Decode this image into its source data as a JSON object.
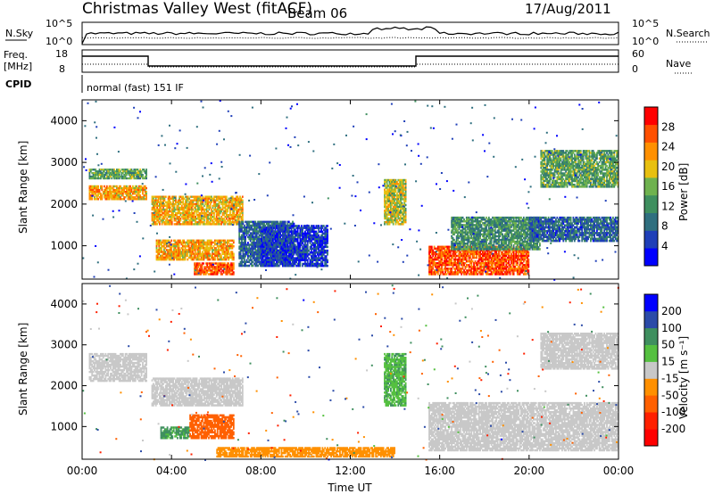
{
  "header": {
    "title": "Christmas Valley West (fitACF)",
    "beam": "Beam 06",
    "date": "17/Aug/2011"
  },
  "scan_panel": {
    "left_label": "N.Sky",
    "left_ticks": [
      "10^5",
      "10^0"
    ],
    "right_label": "N.Search",
    "right_ticks": [
      "10^5",
      "10^0"
    ]
  },
  "freq_panel": {
    "left_label_1": "Freq.",
    "left_label_2": "[MHz]",
    "left_ticks": [
      "18",
      "8"
    ],
    "right_label": "Nave",
    "right_ticks": [
      "60",
      "0"
    ],
    "cpid_label": "CPID",
    "cpid_text": "normal (fast) 151 IF"
  },
  "chart_data": [
    {
      "type": "heatmap",
      "name": "power",
      "ylabel": "Slant Range [km]",
      "y_ticks": [
        "4000",
        "3000",
        "2000",
        "1000"
      ],
      "y_values": [
        4000,
        3000,
        2000,
        1000
      ],
      "ylim": [
        200,
        4500
      ],
      "xlim_hours": [
        0,
        24
      ],
      "colorbar": {
        "label": "Power [dB]",
        "ticks": [
          "28",
          "24",
          "20",
          "16",
          "12",
          "8",
          "4"
        ],
        "range": [
          0,
          32
        ],
        "colors": [
          "#0000ff",
          "#1f3fb8",
          "#2f6f7f",
          "#3f8f5f",
          "#6fb24f",
          "#e8c010",
          "#ff9000",
          "#ff5000",
          "#ff0000"
        ]
      },
      "regions": [
        {
          "t": [
            0.3,
            2.9
          ],
          "r": [
            2100,
            2450
          ],
          "power": 22
        },
        {
          "t": [
            0.3,
            2.9
          ],
          "r": [
            2600,
            2850
          ],
          "power": 14
        },
        {
          "t": [
            3.1,
            7.2
          ],
          "r": [
            1500,
            2200
          ],
          "power": 21
        },
        {
          "t": [
            3.3,
            6.8
          ],
          "r": [
            650,
            1150
          ],
          "power": 22
        },
        {
          "t": [
            5.0,
            6.8
          ],
          "r": [
            300,
            600
          ],
          "power": 26
        },
        {
          "t": [
            7.0,
            9.5
          ],
          "r": [
            500,
            1600
          ],
          "power": 8
        },
        {
          "t": [
            8.0,
            11.0
          ],
          "r": [
            500,
            1500
          ],
          "power": 5
        },
        {
          "t": [
            13.5,
            14.5
          ],
          "r": [
            1500,
            2600
          ],
          "power": 18
        },
        {
          "t": [
            15.5,
            20.0
          ],
          "r": [
            300,
            1000
          ],
          "power": 27
        },
        {
          "t": [
            16.5,
            20.5
          ],
          "r": [
            900,
            1700
          ],
          "power": 12
        },
        {
          "t": [
            20.5,
            24.0
          ],
          "r": [
            2400,
            3300
          ],
          "power": 14
        },
        {
          "t": [
            20.0,
            24.0
          ],
          "r": [
            1100,
            1700
          ],
          "power": 8
        }
      ]
    },
    {
      "type": "heatmap",
      "name": "velocity",
      "ylabel": "Slant Range [km]",
      "y_ticks": [
        "4000",
        "3000",
        "2000",
        "1000"
      ],
      "y_values": [
        4000,
        3000,
        2000,
        1000
      ],
      "ylim": [
        200,
        4500
      ],
      "xlim_hours": [
        0,
        24
      ],
      "colorbar": {
        "label": "Velocity [m s⁻¹]",
        "ticks": [
          "200",
          "100",
          "50",
          "15",
          "-15",
          "-50",
          "-100",
          "-200"
        ],
        "colors": [
          "#0000ff",
          "#2b4ba8",
          "#3f8f5f",
          "#55c040",
          "#c8c8c8",
          "#ff9000",
          "#ff6000",
          "#ff2000",
          "#ff0000"
        ]
      },
      "regions": [
        {
          "t": [
            0.3,
            2.9
          ],
          "r": [
            2100,
            2800
          ],
          "vel": 0
        },
        {
          "t": [
            3.1,
            7.2
          ],
          "r": [
            1500,
            2200
          ],
          "vel": 0
        },
        {
          "t": [
            3.5,
            4.8
          ],
          "r": [
            700,
            1000
          ],
          "vel": 40
        },
        {
          "t": [
            4.8,
            6.8
          ],
          "r": [
            700,
            1300
          ],
          "vel": -60
        },
        {
          "t": [
            6.0,
            14.0
          ],
          "r": [
            250,
            500
          ],
          "vel": -40
        },
        {
          "t": [
            13.5,
            14.5
          ],
          "r": [
            1500,
            2800
          ],
          "vel": 30
        },
        {
          "t": [
            15.5,
            24.0
          ],
          "r": [
            400,
            1600
          ],
          "vel": 0
        },
        {
          "t": [
            20.5,
            24.0
          ],
          "r": [
            2400,
            3300
          ],
          "vel": 0
        }
      ]
    }
  ],
  "x_axis": {
    "label": "Time UT",
    "ticks": [
      "00:00",
      "04:00",
      "08:00",
      "12:00",
      "16:00",
      "20:00",
      "00:00"
    ],
    "hours": [
      0,
      4,
      8,
      12,
      16,
      20,
      24
    ]
  }
}
